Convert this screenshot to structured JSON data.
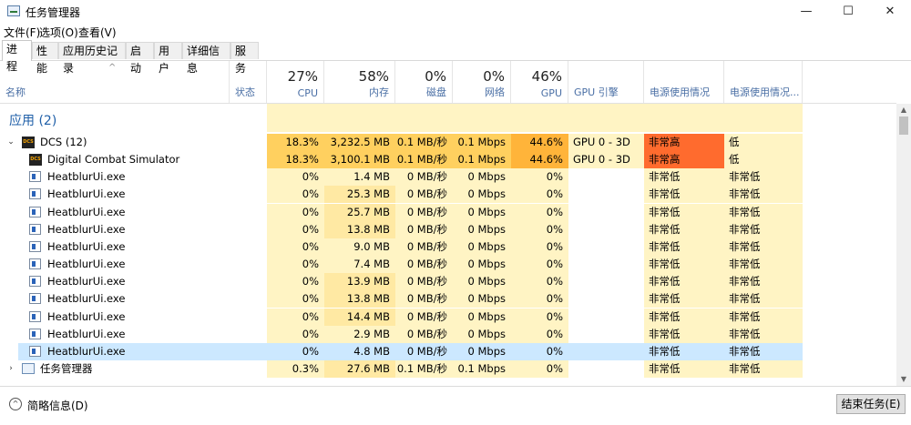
{
  "window": {
    "title": "任务管理器",
    "controls": [
      "—",
      "☐",
      "✕"
    ]
  },
  "menu": [
    "文件(F)",
    "选项(O)",
    "查看(V)"
  ],
  "tabs": [
    "进程",
    "性能",
    "应用历史记录",
    "启动",
    "用户",
    "详细信息",
    "服务"
  ],
  "columns": {
    "name": "名称",
    "status": "状态",
    "cpu": {
      "pct": "27%",
      "label": "CPU"
    },
    "mem": {
      "pct": "58%",
      "label": "内存"
    },
    "disk": {
      "pct": "0%",
      "label": "磁盘"
    },
    "net": {
      "pct": "0%",
      "label": "网络"
    },
    "gpu": {
      "pct": "46%",
      "label": "GPU"
    },
    "gpu_engine": "GPU 引擎",
    "power": "电源使用情况",
    "power_trend": "电源使用情况..."
  },
  "group": "应用 (2)",
  "rows": [
    {
      "kind": "parent-dcs",
      "name": "DCS (12)",
      "cpu": "18.3%",
      "mem": "3,232.5 MB",
      "disk": "0.1 MB/秒",
      "net": "0.1 Mbps",
      "gpu": "44.6%",
      "engine": "GPU 0 - 3D",
      "power": "非常高",
      "trend": "低",
      "hi": true
    },
    {
      "kind": "child-dcs",
      "name": "Digital Combat Simulator",
      "cpu": "18.3%",
      "mem": "3,100.1 MB",
      "disk": "0.1 MB/秒",
      "net": "0.1 Mbps",
      "gpu": "44.6%",
      "engine": "GPU 0 - 3D",
      "power": "非常高",
      "trend": "低",
      "hi": true
    },
    {
      "kind": "exe",
      "name": "HeatblurUi.exe",
      "cpu": "0%",
      "mem": "1.4 MB",
      "disk": "0 MB/秒",
      "net": "0 Mbps",
      "gpu": "0%",
      "engine": "",
      "power": "非常低",
      "trend": "非常低"
    },
    {
      "kind": "exe",
      "name": "HeatblurUi.exe",
      "cpu": "0%",
      "mem": "25.3 MB",
      "disk": "0 MB/秒",
      "net": "0 Mbps",
      "gpu": "0%",
      "engine": "",
      "power": "非常低",
      "trend": "非常低"
    },
    {
      "kind": "exe",
      "name": "HeatblurUi.exe",
      "cpu": "0%",
      "mem": "25.7 MB",
      "disk": "0 MB/秒",
      "net": "0 Mbps",
      "gpu": "0%",
      "engine": "",
      "power": "非常低",
      "trend": "非常低"
    },
    {
      "kind": "exe",
      "name": "HeatblurUi.exe",
      "cpu": "0%",
      "mem": "13.8 MB",
      "disk": "0 MB/秒",
      "net": "0 Mbps",
      "gpu": "0%",
      "engine": "",
      "power": "非常低",
      "trend": "非常低"
    },
    {
      "kind": "exe",
      "name": "HeatblurUi.exe",
      "cpu": "0%",
      "mem": "9.0 MB",
      "disk": "0 MB/秒",
      "net": "0 Mbps",
      "gpu": "0%",
      "engine": "",
      "power": "非常低",
      "trend": "非常低"
    },
    {
      "kind": "exe",
      "name": "HeatblurUi.exe",
      "cpu": "0%",
      "mem": "7.4 MB",
      "disk": "0 MB/秒",
      "net": "0 Mbps",
      "gpu": "0%",
      "engine": "",
      "power": "非常低",
      "trend": "非常低"
    },
    {
      "kind": "exe",
      "name": "HeatblurUi.exe",
      "cpu": "0%",
      "mem": "13.9 MB",
      "disk": "0 MB/秒",
      "net": "0 Mbps",
      "gpu": "0%",
      "engine": "",
      "power": "非常低",
      "trend": "非常低"
    },
    {
      "kind": "exe",
      "name": "HeatblurUi.exe",
      "cpu": "0%",
      "mem": "13.8 MB",
      "disk": "0 MB/秒",
      "net": "0 Mbps",
      "gpu": "0%",
      "engine": "",
      "power": "非常低",
      "trend": "非常低"
    },
    {
      "kind": "exe",
      "name": "HeatblurUi.exe",
      "cpu": "0%",
      "mem": "14.4 MB",
      "disk": "0 MB/秒",
      "net": "0 Mbps",
      "gpu": "0%",
      "engine": "",
      "power": "非常低",
      "trend": "非常低"
    },
    {
      "kind": "exe",
      "name": "HeatblurUi.exe",
      "cpu": "0%",
      "mem": "2.9 MB",
      "disk": "0 MB/秒",
      "net": "0 Mbps",
      "gpu": "0%",
      "engine": "",
      "power": "非常低",
      "trend": "非常低"
    },
    {
      "kind": "exe",
      "name": "HeatblurUi.exe",
      "cpu": "0%",
      "mem": "4.8 MB",
      "disk": "0 MB/秒",
      "net": "0 Mbps",
      "gpu": "0%",
      "engine": "",
      "power": "非常低",
      "trend": "非常低",
      "selected": true
    },
    {
      "kind": "parent-tm",
      "name": "任务管理器",
      "cpu": "0.3%",
      "mem": "27.6 MB",
      "disk": "0.1 MB/秒",
      "net": "0.1 Mbps",
      "gpu": "0%",
      "engine": "",
      "power": "非常低",
      "trend": "非常低"
    }
  ],
  "colors": {
    "cell_light": "#fff4c4",
    "cell_mid": "#ffe9a3",
    "cell_hot": "#ffd05f",
    "gpu_hot": "#ffb43a",
    "power_hot": "#ff6b2e",
    "selected": "#cce8ff",
    "group_text": "#1f5fa8"
  },
  "footer": {
    "fewer": "简略信息(D)",
    "end_task": "结束任务(E)"
  }
}
